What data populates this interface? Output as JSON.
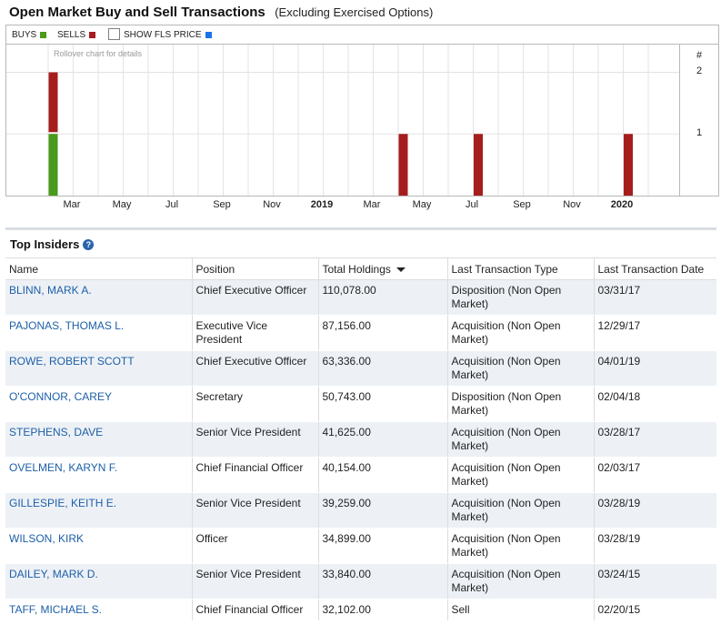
{
  "header": {
    "title": "Open Market Buy and Sell Transactions",
    "subtitle": "(Excluding Exercised Options)"
  },
  "legend": {
    "buys_label": "BUYS",
    "sells_label": "SELLS",
    "fls_label": "SHOW FLS PRICE",
    "buys_color": "#4a9a1c",
    "sells_color": "#a61d1d",
    "fls_color": "#1a73e8"
  },
  "chart_hint": "Rollover chart for details",
  "chart_data": {
    "type": "bar",
    "title": "Open Market Buy and Sell Transactions",
    "y_axis_title": "#",
    "yticks": [
      1,
      2
    ],
    "ylim": [
      0,
      2.45
    ],
    "x_tick_labels": [
      {
        "label": "Mar",
        "bold": false
      },
      {
        "label": "May",
        "bold": false
      },
      {
        "label": "Jul",
        "bold": false
      },
      {
        "label": "Sep",
        "bold": false
      },
      {
        "label": "Nov",
        "bold": false
      },
      {
        "label": "2019",
        "bold": true
      },
      {
        "label": "Mar",
        "bold": false
      },
      {
        "label": "May",
        "bold": false
      },
      {
        "label": "Jul",
        "bold": false
      },
      {
        "label": "Sep",
        "bold": false
      },
      {
        "label": "Nov",
        "bold": false
      },
      {
        "label": "2020",
        "bold": true
      }
    ],
    "period_start": "2018-01",
    "months_shown": 24,
    "series": [
      {
        "name": "BUYS",
        "color": "#4a9a1c",
        "points": [
          {
            "month": "2018-01",
            "value": 1
          }
        ]
      },
      {
        "name": "SELLS",
        "color": "#a61d1d",
        "points": [
          {
            "month": "2018-01",
            "value": 1
          },
          {
            "month": "2019-03",
            "value": 1
          },
          {
            "month": "2019-06",
            "value": 1
          },
          {
            "month": "2019-12",
            "value": 1
          }
        ]
      }
    ]
  },
  "insiders": {
    "title": "Top Insiders",
    "columns": {
      "name": "Name",
      "position": "Position",
      "holdings": "Total Holdings",
      "type": "Last Transaction Type",
      "date": "Last Transaction Date"
    },
    "rows": [
      {
        "name": "BLINN, MARK A.",
        "position": "Chief Executive Officer",
        "holdings": "110,078.00",
        "type": "Disposition (Non Open Market)",
        "date": "03/31/17"
      },
      {
        "name": "PAJONAS, THOMAS L.",
        "position": "Executive Vice President",
        "holdings": "87,156.00",
        "type": "Acquisition (Non Open Market)",
        "date": "12/29/17"
      },
      {
        "name": "ROWE, ROBERT SCOTT",
        "position": "Chief Executive Officer",
        "holdings": "63,336.00",
        "type": "Acquisition (Non Open Market)",
        "date": "04/01/19"
      },
      {
        "name": "O'CONNOR, CAREY",
        "position": "Secretary",
        "holdings": "50,743.00",
        "type": "Disposition (Non Open Market)",
        "date": "02/04/18"
      },
      {
        "name": "STEPHENS, DAVE",
        "position": "Senior Vice President",
        "holdings": "41,625.00",
        "type": "Acquisition (Non Open Market)",
        "date": "03/28/17"
      },
      {
        "name": "OVELMEN, KARYN F.",
        "position": "Chief Financial Officer",
        "holdings": "40,154.00",
        "type": "Acquisition (Non Open Market)",
        "date": "02/03/17"
      },
      {
        "name": "GILLESPIE, KEITH E.",
        "position": "Senior Vice President",
        "holdings": "39,259.00",
        "type": "Acquisition (Non Open Market)",
        "date": "03/28/19"
      },
      {
        "name": "WILSON, KIRK",
        "position": "Officer",
        "holdings": "34,899.00",
        "type": "Acquisition (Non Open Market)",
        "date": "03/28/19"
      },
      {
        "name": "DAILEY, MARK D.",
        "position": "Senior Vice President",
        "holdings": "33,840.00",
        "type": "Acquisition (Non Open Market)",
        "date": "03/24/15"
      },
      {
        "name": "TAFF, MICHAEL S.",
        "position": "Chief Financial Officer",
        "holdings": "32,102.00",
        "type": "Sell",
        "date": "02/20/15"
      }
    ]
  }
}
